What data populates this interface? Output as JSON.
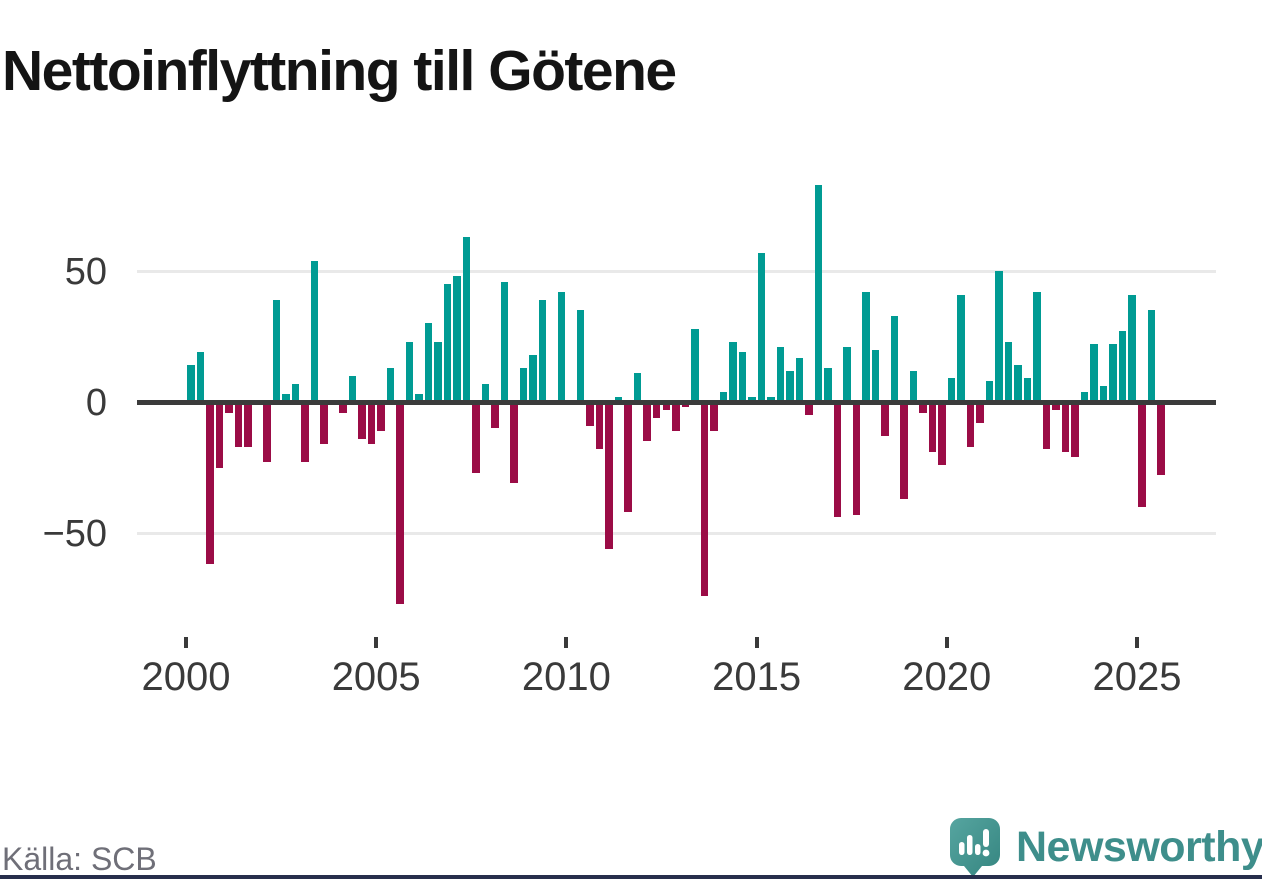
{
  "title": "Nettoinflyttning till Götene",
  "source": "Källa: SCB",
  "brand": {
    "name": "Newsworthy",
    "icon": "newsworthy-speech-bubble-chart-icon"
  },
  "colors": {
    "positive_bar": "#009b93",
    "negative_bar": "#9b0c46",
    "zero_line": "#3b3b3b",
    "gridline": "#e9e9e9",
    "tick_text": "#3a3a3a",
    "source_text": "#6f6f78",
    "brand_teal": "#3e8e8b",
    "bottom_bar": "#272e4c",
    "background": "#ffffff"
  },
  "y_axis": {
    "tick_labels": [
      "50",
      "0",
      "−50"
    ],
    "tick_values": [
      50,
      0,
      -50
    ]
  },
  "x_axis": {
    "tick_labels": [
      "2000",
      "2005",
      "2010",
      "2015",
      "2020",
      "2025"
    ]
  },
  "chart_data": {
    "type": "bar",
    "title": "Nettoinflyttning till Götene",
    "x_unit": "quarter",
    "start": "2000Q1",
    "end": "2025Q3",
    "grid": "horizontal",
    "legend": "none",
    "ylim": [
      -85,
      90
    ],
    "yticks": [
      50,
      0,
      -50
    ],
    "xticks": [
      2000,
      2005,
      2010,
      2015,
      2020,
      2025
    ],
    "quarters": [
      "2000Q1",
      "2000Q2",
      "2000Q3",
      "2000Q4",
      "2001Q1",
      "2001Q2",
      "2001Q3",
      "2001Q4",
      "2002Q1",
      "2002Q2",
      "2002Q3",
      "2002Q4",
      "2003Q1",
      "2003Q2",
      "2003Q3",
      "2003Q4",
      "2004Q1",
      "2004Q2",
      "2004Q3",
      "2004Q4",
      "2005Q1",
      "2005Q2",
      "2005Q3",
      "2005Q4",
      "2006Q1",
      "2006Q2",
      "2006Q3",
      "2006Q4",
      "2007Q1",
      "2007Q2",
      "2007Q3",
      "2007Q4",
      "2008Q1",
      "2008Q2",
      "2008Q3",
      "2008Q4",
      "2009Q1",
      "2009Q2",
      "2009Q3",
      "2009Q4",
      "2010Q1",
      "2010Q2",
      "2010Q3",
      "2010Q4",
      "2011Q1",
      "2011Q2",
      "2011Q3",
      "2011Q4",
      "2012Q1",
      "2012Q2",
      "2012Q3",
      "2012Q4",
      "2013Q1",
      "2013Q2",
      "2013Q3",
      "2013Q4",
      "2014Q1",
      "2014Q2",
      "2014Q3",
      "2014Q4",
      "2015Q1",
      "2015Q2",
      "2015Q3",
      "2015Q4",
      "2016Q1",
      "2016Q2",
      "2016Q3",
      "2016Q4",
      "2017Q1",
      "2017Q2",
      "2017Q3",
      "2017Q4",
      "2018Q1",
      "2018Q2",
      "2018Q3",
      "2018Q4",
      "2019Q1",
      "2019Q2",
      "2019Q3",
      "2019Q4",
      "2020Q1",
      "2020Q2",
      "2020Q3",
      "2020Q4",
      "2021Q1",
      "2021Q2",
      "2021Q3",
      "2021Q4",
      "2022Q1",
      "2022Q2",
      "2022Q3",
      "2022Q4",
      "2023Q1",
      "2023Q2",
      "2023Q3",
      "2023Q4",
      "2024Q1",
      "2024Q2",
      "2024Q3",
      "2024Q4",
      "2025Q1",
      "2025Q2",
      "2025Q3"
    ],
    "values": [
      14,
      19,
      -62,
      -25,
      -4,
      -17,
      -17,
      0,
      -23,
      39,
      3,
      7,
      -23,
      54,
      -16,
      0,
      -4,
      10,
      -14,
      -16,
      -11,
      13,
      -77,
      23,
      3,
      30,
      23,
      45,
      48,
      63,
      -27,
      7,
      -10,
      46,
      -31,
      13,
      18,
      39,
      0,
      42,
      0,
      35,
      -9,
      -18,
      -56,
      2,
      -42,
      11,
      -15,
      -6,
      -3,
      -11,
      -2,
      28,
      -74,
      -11,
      4,
      23,
      19,
      2,
      57,
      2,
      21,
      12,
      17,
      -5,
      83,
      13,
      -44,
      21,
      -43,
      42,
      20,
      -13,
      33,
      -37,
      12,
      -4,
      -19,
      -24,
      9,
      41,
      -17,
      -8,
      8,
      50,
      23,
      14,
      9,
      42,
      -18,
      -3,
      -19,
      -21,
      4,
      22,
      6,
      22,
      27,
      41,
      -40,
      35,
      -28
    ]
  }
}
